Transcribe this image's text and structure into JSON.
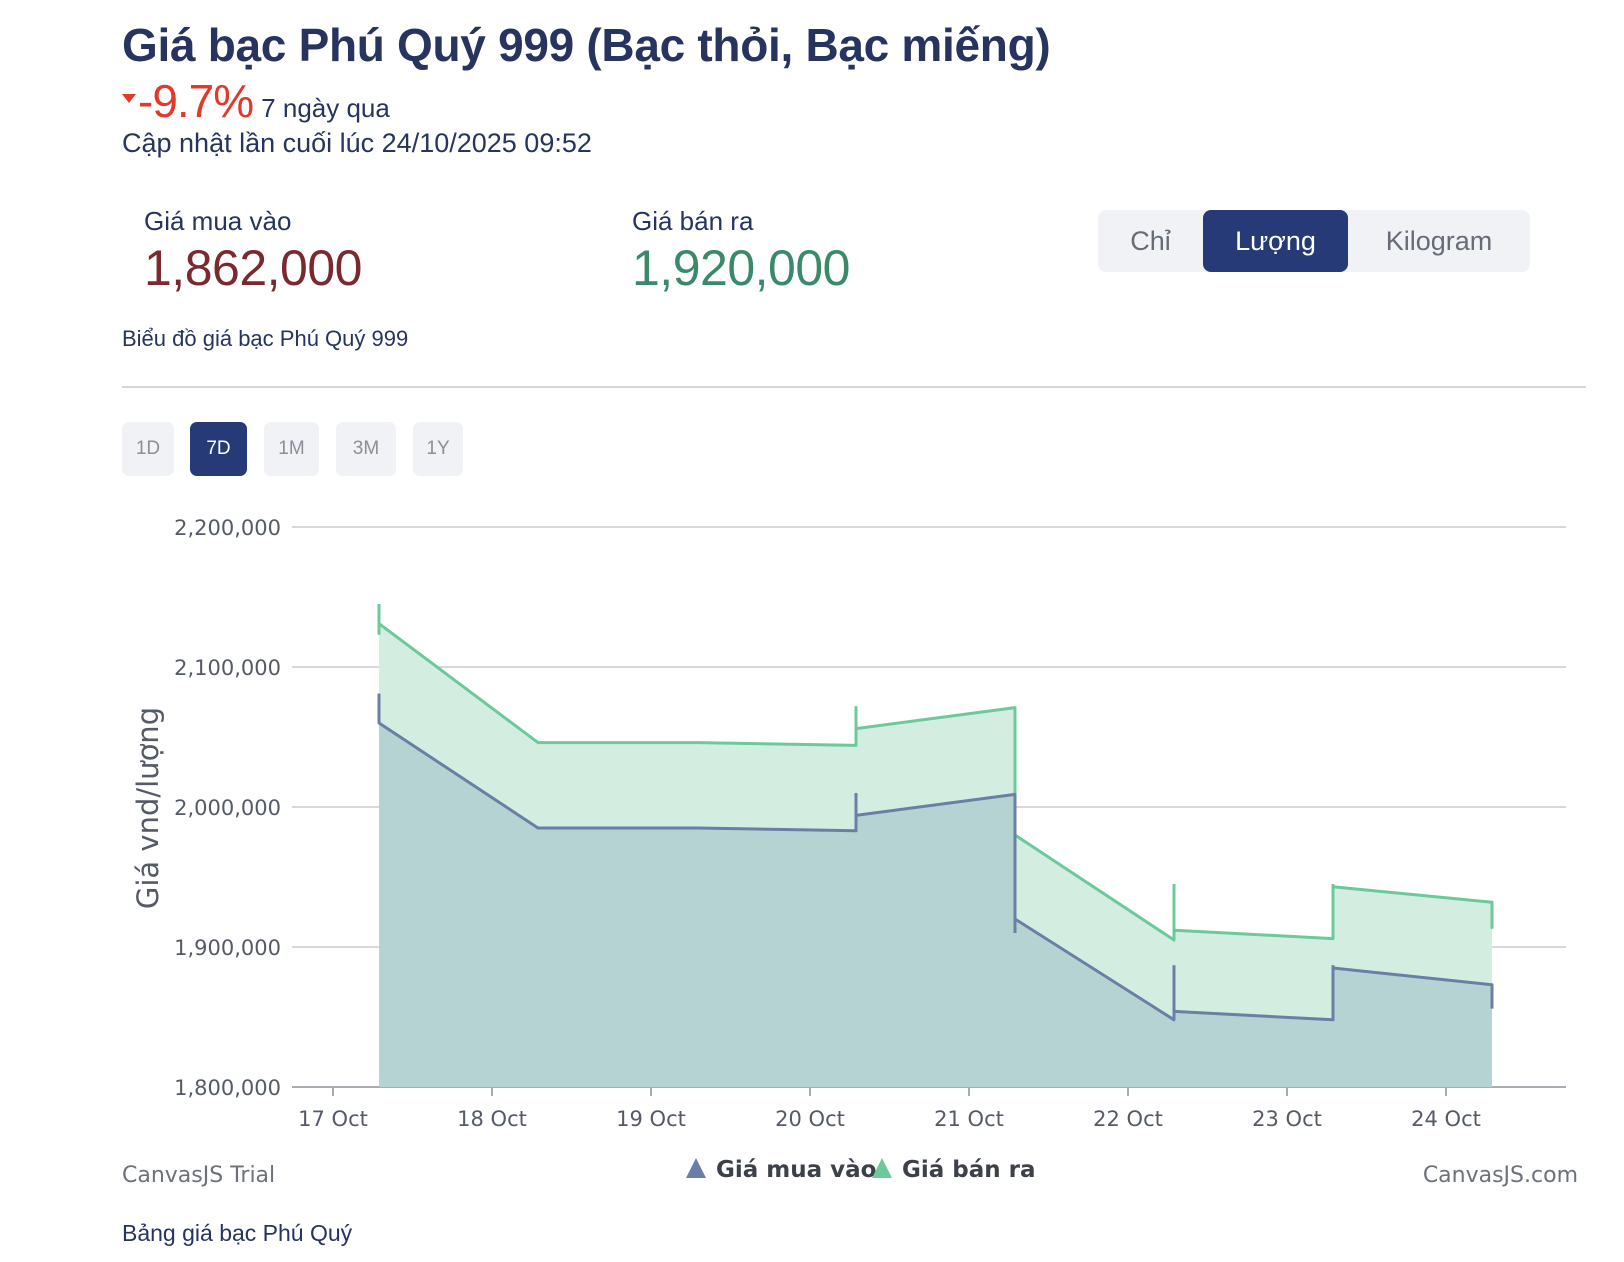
{
  "header": {
    "title": "Giá bạc Phú Quý 999 (Bạc thỏi, Bạc miếng)",
    "change_value": "-9.7%",
    "change_period": "7 ngày qua",
    "updated": "Cập nhật lần cuối lúc 24/10/2025 09:52",
    "change_color": "#e23a2a"
  },
  "prices": {
    "buy_label": "Giá mua vào",
    "buy_value": "1,862,000",
    "sell_label": "Giá bán ra",
    "sell_value": "1,920,000",
    "buy_color": "#7a2a2e",
    "sell_color": "#3a8a6a"
  },
  "units": {
    "options": [
      "Chỉ",
      "Lượng",
      "Kilogram"
    ],
    "selected": "Lượng"
  },
  "chart_subtitle": "Biểu đồ giá bạc Phú Quý 999",
  "ranges": {
    "options": [
      "1D",
      "7D",
      "1M",
      "3M",
      "1Y"
    ],
    "selected": "7D"
  },
  "chart_data": {
    "type": "area",
    "ylabel": "Giá vnd/lượng",
    "ylim": [
      1800000,
      2200000
    ],
    "yticks": [
      "1,800,000",
      "1,900,000",
      "2,000,000",
      "2,100,000",
      "2,200,000"
    ],
    "xticks": [
      "17 Oct",
      "18 Oct",
      "19 Oct",
      "20 Oct",
      "21 Oct",
      "22 Oct",
      "23 Oct",
      "24 Oct"
    ],
    "grid": true,
    "legend_position": "bottom-center",
    "series": [
      {
        "name": "Giá mua vào",
        "color": "#6b7fa6",
        "fill": "#b5d3d3",
        "points": [
          {
            "x": "17 Oct",
            "open": 2081000,
            "close": 2060000,
            "high": 2081000,
            "low": 2060000
          },
          {
            "x": "18 Oct",
            "open": 1985000,
            "close": 1985000,
            "high": 1985000,
            "low": 1985000
          },
          {
            "x": "19 Oct",
            "open": 1985000,
            "close": 1985000,
            "high": 1985000,
            "low": 1985000
          },
          {
            "x": "20 Oct",
            "open": 1983000,
            "close": 1994000,
            "high": 2010000,
            "low": 1983000
          },
          {
            "x": "21 Oct",
            "open": 2009000,
            "close": 1920000,
            "high": 2009000,
            "low": 1910000
          },
          {
            "x": "22 Oct",
            "open": 1848000,
            "close": 1854000,
            "high": 1887000,
            "low": 1848000
          },
          {
            "x": "23 Oct",
            "open": 1848000,
            "close": 1885000,
            "high": 1887000,
            "low": 1848000
          },
          {
            "x": "24 Oct",
            "open": 1873000,
            "close": 1862000,
            "high": 1873000,
            "low": 1856000
          }
        ]
      },
      {
        "name": "Giá bán ra",
        "color": "#6cc99a",
        "fill": "#d3eee1",
        "points": [
          {
            "x": "17 Oct",
            "open": 2145000,
            "close": 2131000,
            "high": 2145000,
            "low": 2123000
          },
          {
            "x": "18 Oct",
            "open": 2046000,
            "close": 2046000,
            "high": 2046000,
            "low": 2046000
          },
          {
            "x": "19 Oct",
            "open": 2046000,
            "close": 2046000,
            "high": 2046000,
            "low": 2046000
          },
          {
            "x": "20 Oct",
            "open": 2044000,
            "close": 2056000,
            "high": 2072000,
            "low": 2044000
          },
          {
            "x": "21 Oct",
            "open": 2071000,
            "close": 1980000,
            "high": 2071000,
            "low": 1976000
          },
          {
            "x": "22 Oct",
            "open": 1905000,
            "close": 1912000,
            "high": 1945000,
            "low": 1905000
          },
          {
            "x": "23 Oct",
            "open": 1906000,
            "close": 1943000,
            "high": 1945000,
            "low": 1906000
          },
          {
            "x": "24 Oct",
            "open": 1932000,
            "close": 1920000,
            "high": 1932000,
            "low": 1913000
          }
        ]
      }
    ],
    "credits_left": "CanvasJS Trial",
    "credits_right": "CanvasJS.com"
  },
  "footer": {
    "caption": "Bảng giá bạc Phú Quý"
  }
}
